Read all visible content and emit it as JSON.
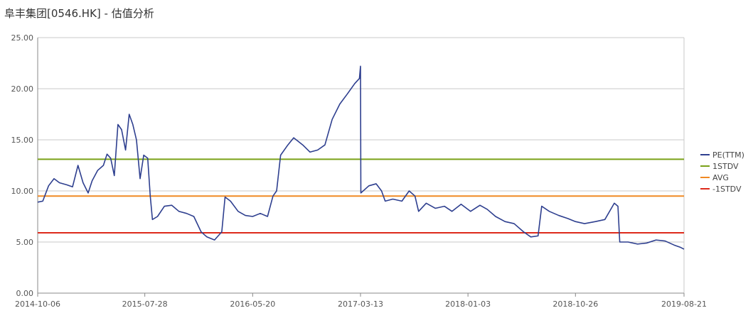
{
  "chart_data": {
    "type": "line",
    "title": "阜丰集团[0546.HK] - 估值分析",
    "xlabel": "",
    "ylabel": "",
    "ylim": [
      0,
      25
    ],
    "y_ticks": [
      "0.00",
      "5.00",
      "10.00",
      "15.00",
      "20.00",
      "25.00"
    ],
    "x_ticks": [
      "2014-10-06",
      "2015-07-28",
      "2016-05-20",
      "2017-03-13",
      "2018-01-03",
      "2018-10-26",
      "2019-08-21"
    ],
    "x_range": [
      "2014-10-06",
      "2019-08-21"
    ],
    "grid": "horizontal",
    "legend_position": "right",
    "colors": {
      "pe": "#2e3f8f",
      "plus1std": "#7aa118",
      "avg": "#f08a24",
      "minus1std": "#dd2a1b",
      "grid": "#c8c8c8",
      "axis": "#888888"
    },
    "series": [
      {
        "name": "PE(TTM)",
        "points": [
          [
            "2014-10-06",
            8.9
          ],
          [
            "2014-10-20",
            9.0
          ],
          [
            "2014-11-05",
            10.5
          ],
          [
            "2014-11-20",
            11.2
          ],
          [
            "2014-12-05",
            10.8
          ],
          [
            "2014-12-25",
            10.6
          ],
          [
            "2015-01-10",
            10.4
          ],
          [
            "2015-01-25",
            12.5
          ],
          [
            "2015-02-08",
            10.8
          ],
          [
            "2015-02-22",
            9.8
          ],
          [
            "2015-03-05",
            11.0
          ],
          [
            "2015-03-20",
            12.0
          ],
          [
            "2015-04-05",
            12.5
          ],
          [
            "2015-04-15",
            13.6
          ],
          [
            "2015-04-25",
            13.2
          ],
          [
            "2015-05-05",
            11.5
          ],
          [
            "2015-05-15",
            16.5
          ],
          [
            "2015-05-25",
            16.0
          ],
          [
            "2015-06-05",
            14.0
          ],
          [
            "2015-06-15",
            17.5
          ],
          [
            "2015-06-25",
            16.5
          ],
          [
            "2015-07-05",
            15.0
          ],
          [
            "2015-07-15",
            11.2
          ],
          [
            "2015-07-25",
            13.5
          ],
          [
            "2015-08-05",
            13.2
          ],
          [
            "2015-08-12",
            9.5
          ],
          [
            "2015-08-18",
            7.2
          ],
          [
            "2015-09-01",
            7.5
          ],
          [
            "2015-09-20",
            8.5
          ],
          [
            "2015-10-10",
            8.6
          ],
          [
            "2015-10-30",
            8.0
          ],
          [
            "2015-11-20",
            7.8
          ],
          [
            "2015-12-10",
            7.5
          ],
          [
            "2015-12-30",
            6.0
          ],
          [
            "2016-01-15",
            5.5
          ],
          [
            "2016-02-05",
            5.2
          ],
          [
            "2016-02-25",
            6.0
          ],
          [
            "2016-03-05",
            9.4
          ],
          [
            "2016-03-20",
            9.0
          ],
          [
            "2016-04-10",
            8.0
          ],
          [
            "2016-04-30",
            7.6
          ],
          [
            "2016-05-20",
            7.5
          ],
          [
            "2016-06-10",
            7.8
          ],
          [
            "2016-06-30",
            7.5
          ],
          [
            "2016-07-15",
            9.5
          ],
          [
            "2016-07-25",
            10.0
          ],
          [
            "2016-08-05",
            13.5
          ],
          [
            "2016-08-25",
            14.5
          ],
          [
            "2016-09-10",
            15.2
          ],
          [
            "2016-10-05",
            14.5
          ],
          [
            "2016-10-25",
            13.8
          ],
          [
            "2016-11-15",
            14.0
          ],
          [
            "2016-12-05",
            14.5
          ],
          [
            "2016-12-25",
            17.0
          ],
          [
            "2017-01-15",
            18.5
          ],
          [
            "2017-02-05",
            19.5
          ],
          [
            "2017-02-25",
            20.5
          ],
          [
            "2017-03-10",
            21.0
          ],
          [
            "2017-03-13",
            22.2
          ],
          [
            "2017-03-14",
            9.8
          ],
          [
            "2017-04-05",
            10.5
          ],
          [
            "2017-04-25",
            10.7
          ],
          [
            "2017-05-10",
            10.0
          ],
          [
            "2017-05-20",
            9.0
          ],
          [
            "2017-06-10",
            9.2
          ],
          [
            "2017-07-05",
            9.0
          ],
          [
            "2017-07-25",
            10.0
          ],
          [
            "2017-08-10",
            9.5
          ],
          [
            "2017-08-20",
            8.0
          ],
          [
            "2017-09-10",
            8.8
          ],
          [
            "2017-10-05",
            8.3
          ],
          [
            "2017-10-30",
            8.5
          ],
          [
            "2017-11-20",
            8.0
          ],
          [
            "2017-12-15",
            8.7
          ],
          [
            "2018-01-10",
            8.0
          ],
          [
            "2018-02-05",
            8.6
          ],
          [
            "2018-02-25",
            8.2
          ],
          [
            "2018-03-20",
            7.5
          ],
          [
            "2018-04-15",
            7.0
          ],
          [
            "2018-05-10",
            6.8
          ],
          [
            "2018-06-05",
            6.0
          ],
          [
            "2018-06-25",
            5.5
          ],
          [
            "2018-07-15",
            5.6
          ],
          [
            "2018-07-25",
            8.5
          ],
          [
            "2018-08-15",
            8.0
          ],
          [
            "2018-09-10",
            7.6
          ],
          [
            "2018-10-05",
            7.3
          ],
          [
            "2018-10-26",
            7.0
          ],
          [
            "2018-11-20",
            6.8
          ],
          [
            "2018-12-20",
            7.0
          ],
          [
            "2019-01-15",
            7.2
          ],
          [
            "2019-02-10",
            8.8
          ],
          [
            "2019-02-20",
            8.5
          ],
          [
            "2019-02-25",
            5.0
          ],
          [
            "2019-03-20",
            5.0
          ],
          [
            "2019-04-15",
            4.8
          ],
          [
            "2019-05-10",
            4.9
          ],
          [
            "2019-06-05",
            5.2
          ],
          [
            "2019-06-30",
            5.1
          ],
          [
            "2019-07-25",
            4.7
          ],
          [
            "2019-08-10",
            4.5
          ],
          [
            "2019-08-21",
            4.3
          ]
        ]
      },
      {
        "name": "1STDV",
        "value": 13.1
      },
      {
        "name": "AVG",
        "value": 9.5
      },
      {
        "name": "-1STDV",
        "value": 5.9
      }
    ]
  }
}
